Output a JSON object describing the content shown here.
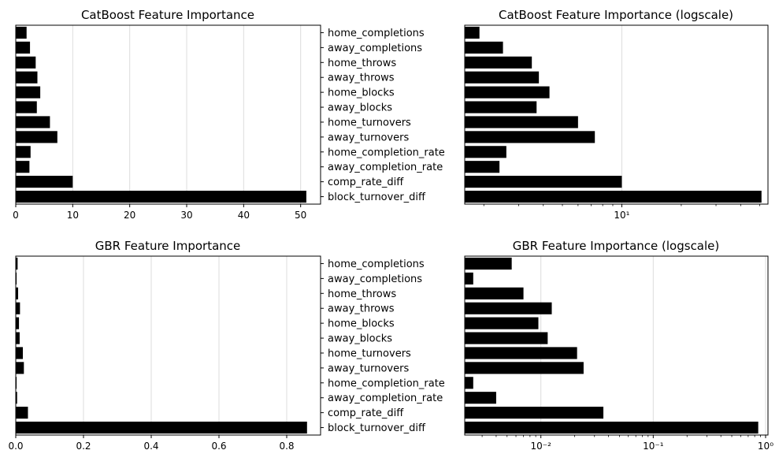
{
  "chart_data": [
    {
      "type": "bar",
      "orientation": "horizontal",
      "title": "CatBoost Feature Importance",
      "categories": [
        "home_completions",
        "away_completions",
        "home_throws",
        "away_throws",
        "home_blocks",
        "away_blocks",
        "home_turnovers",
        "away_turnovers",
        "home_completion_rate",
        "away_completion_rate",
        "comp_rate_diff",
        "block_turnover_diff"
      ],
      "values": [
        1.9,
        2.5,
        3.5,
        3.8,
        4.3,
        3.7,
        6.0,
        7.3,
        2.6,
        2.4,
        10.0,
        51.0
      ],
      "xscale": "linear",
      "xlim": [
        0,
        53.5
      ],
      "xticks": [
        0,
        10,
        20,
        30,
        40,
        50
      ],
      "xtick_labels": [
        "0",
        "10",
        "20",
        "30",
        "40",
        "50"
      ],
      "grid": "x",
      "color": "#000000"
    },
    {
      "type": "bar",
      "orientation": "horizontal",
      "title": "CatBoost Feature Importance (logscale)",
      "categories": [
        "home_completions",
        "away_completions",
        "home_throws",
        "away_throws",
        "home_blocks",
        "away_blocks",
        "home_turnovers",
        "away_turnovers",
        "home_completion_rate",
        "away_completion_rate",
        "comp_rate_diff",
        "block_turnover_diff"
      ],
      "values": [
        1.9,
        2.5,
        3.5,
        3.8,
        4.3,
        3.7,
        6.0,
        7.3,
        2.6,
        2.4,
        10.0,
        51.0
      ],
      "xscale": "log",
      "xlim": [
        1.6,
        55
      ],
      "xticks": [
        10
      ],
      "xtick_labels": [
        "10¹"
      ],
      "grid": "x",
      "color": "#000000"
    },
    {
      "type": "bar",
      "orientation": "horizontal",
      "title": "GBR Feature Importance",
      "categories": [
        "home_completions",
        "away_completions",
        "home_throws",
        "away_throws",
        "home_blocks",
        "away_blocks",
        "home_turnovers",
        "away_turnovers",
        "home_completion_rate",
        "away_completion_rate",
        "comp_rate_diff",
        "block_turnover_diff"
      ],
      "values": [
        0.0055,
        0.0025,
        0.007,
        0.0125,
        0.0095,
        0.0115,
        0.021,
        0.024,
        0.0025,
        0.004,
        0.036,
        0.86
      ],
      "xscale": "linear",
      "xlim": [
        0,
        0.9
      ],
      "xticks": [
        0,
        0.2,
        0.4,
        0.6,
        0.8
      ],
      "xtick_labels": [
        "0.0",
        "0.2",
        "0.4",
        "0.6",
        "0.8"
      ],
      "grid": "x",
      "color": "#000000"
    },
    {
      "type": "bar",
      "orientation": "horizontal",
      "title": "GBR Feature Importance (logscale)",
      "categories": [
        "home_completions",
        "away_completions",
        "home_throws",
        "away_throws",
        "home_blocks",
        "away_blocks",
        "home_turnovers",
        "away_turnovers",
        "home_completion_rate",
        "away_completion_rate",
        "comp_rate_diff",
        "block_turnover_diff"
      ],
      "values": [
        0.0055,
        0.0025,
        0.007,
        0.0125,
        0.0095,
        0.0115,
        0.021,
        0.024,
        0.0025,
        0.004,
        0.036,
        0.86
      ],
      "xscale": "log",
      "xlim": [
        0.0021,
        1.05
      ],
      "xticks": [
        0.01,
        0.1,
        1
      ],
      "xtick_labels": [
        "10⁻²",
        "10⁻¹",
        "10⁰"
      ],
      "grid": "x",
      "color": "#000000"
    }
  ]
}
